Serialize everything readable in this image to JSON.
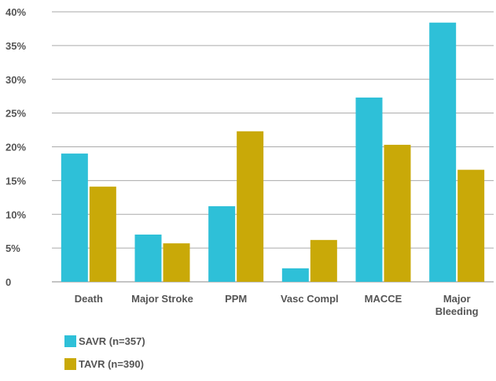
{
  "chart_data": {
    "type": "bar",
    "categories": [
      "Death",
      "Major Stroke",
      "PPM",
      "Vasc Compl",
      "MACCE",
      "Major Bleeding"
    ],
    "category_lines": [
      [
        "Death"
      ],
      [
        "Major Stroke"
      ],
      [
        "PPM"
      ],
      [
        "Vasc Compl"
      ],
      [
        "MACCE"
      ],
      [
        "Major",
        "Bleeding"
      ]
    ],
    "series": [
      {
        "name": "SAVR (n=357)",
        "color": "#2ec0d8",
        "values": [
          19.0,
          7.0,
          11.2,
          2.0,
          27.3,
          38.4
        ]
      },
      {
        "name": "TAVR (n=390)",
        "color": "#c9a908",
        "values": [
          14.1,
          5.7,
          22.3,
          6.2,
          20.3,
          16.6
        ]
      }
    ],
    "ylim": [
      0,
      40
    ],
    "yticks": [
      0,
      5,
      10,
      15,
      20,
      25,
      30,
      35,
      40
    ],
    "ytick_labels": [
      "0",
      "5%",
      "10%",
      "15%",
      "20%",
      "25%",
      "30%",
      "35%",
      "40%"
    ],
    "xlabel": "",
    "ylabel": "",
    "title": "",
    "grid": true,
    "legend_position": "bottom-left"
  }
}
